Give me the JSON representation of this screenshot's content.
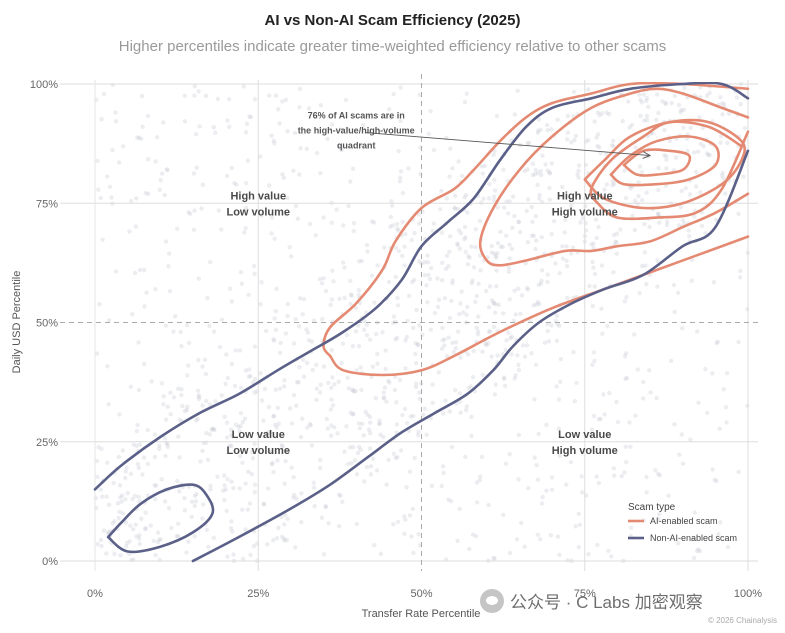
{
  "title": "AI vs Non-AI Scam Efficiency (2025)",
  "subtitle": "Higher percentiles indicate greater time-weighted efficiency relative to other scams",
  "chart_data": {
    "type": "scatter",
    "xlabel": "Transfer Rate Percentile",
    "ylabel": "Daily USD Percentile",
    "xlim": [
      0,
      100
    ],
    "ylim": [
      0,
      100
    ],
    "x_ticks": [
      "0%",
      "25%",
      "50%",
      "75%",
      "100%"
    ],
    "y_ticks": [
      "0%",
      "25%",
      "50%",
      "75%",
      "100%"
    ],
    "grid": true,
    "reference_lines": {
      "x": 50,
      "y": 50,
      "style": "dashed"
    },
    "quadrant_labels": [
      {
        "line1": "High value",
        "line2": "Low volume",
        "x": 25,
        "y": 75
      },
      {
        "line1": "High value",
        "line2": "High volume",
        "x": 75,
        "y": 75
      },
      {
        "line1": "Low value",
        "line2": "Low volume",
        "x": 25,
        "y": 25
      },
      {
        "line1": "Low value",
        "line2": "High volume",
        "x": 75,
        "y": 25
      }
    ],
    "annotation": {
      "lines": [
        "76% of AI scams are in",
        "the high-value/high-volume",
        "quadrant"
      ],
      "text_x": 40,
      "text_y": 94,
      "arrow_to": [
        85,
        85
      ]
    },
    "legend": {
      "title": "Scam type",
      "placement": "bottom-right",
      "items": [
        {
          "label": "AI-enabled scam",
          "color": "#e58a72"
        },
        {
          "label": "Non-AI-enabled scam",
          "color": "#5a6088"
        }
      ]
    },
    "series": [
      {
        "name": "AI-enabled scam",
        "color": "#e58a72",
        "contours": [
          [
            [
              36,
              43
            ],
            [
              38,
              40
            ],
            [
              44,
              39
            ],
            [
              50,
              40
            ],
            [
              55,
              43
            ],
            [
              62,
              48
            ],
            [
              70,
              53
            ],
            [
              78,
              57
            ],
            [
              86,
              61
            ],
            [
              92,
              64
            ],
            [
              100,
              68
            ]
          ],
          [
            [
              100,
              77
            ],
            [
              95,
              73
            ],
            [
              90,
              70
            ],
            [
              85,
              67
            ],
            [
              80,
              66
            ],
            [
              76,
              65
            ],
            [
              72,
              65
            ],
            [
              66,
              63
            ],
            [
              62,
              62
            ],
            [
              60,
              63
            ],
            [
              59,
              67
            ],
            [
              61,
              74
            ],
            [
              65,
              82
            ],
            [
              70,
              89
            ],
            [
              76,
              95
            ],
            [
              82,
              98
            ],
            [
              86,
              99
            ],
            [
              90,
              98
            ],
            [
              96,
              95
            ],
            [
              100,
              93
            ]
          ],
          [
            [
              36,
              43
            ],
            [
              35,
              45
            ],
            [
              36,
              49
            ],
            [
              40,
              54
            ],
            [
              44,
              61
            ],
            [
              46,
              67
            ],
            [
              50,
              74
            ],
            [
              55,
              78
            ],
            [
              58,
              82
            ],
            [
              62,
              88
            ],
            [
              66,
              93
            ],
            [
              70,
              96
            ],
            [
              76,
              98
            ],
            [
              82,
              100
            ],
            [
              90,
              100
            ],
            [
              100,
              99
            ]
          ],
          [
            [
              100,
              90
            ],
            [
              96,
              78
            ],
            [
              92,
              73
            ],
            [
              86,
              72
            ],
            [
              80,
              72
            ],
            [
              77,
              75
            ],
            [
              76,
              78
            ],
            [
              79,
              84
            ],
            [
              84,
              89
            ],
            [
              88,
              92
            ],
            [
              94,
              91
            ],
            [
              99,
              87
            ]
          ],
          [
            [
              75,
              80
            ],
            [
              78,
              84
            ],
            [
              82,
              89
            ],
            [
              88,
              92
            ],
            [
              94,
              92
            ],
            [
              99,
              88
            ],
            [
              99,
              84
            ],
            [
              96,
              79
            ],
            [
              90,
              75
            ],
            [
              84,
              74
            ],
            [
              78,
              76
            ],
            [
              75,
              80
            ]
          ],
          [
            [
              79,
              81
            ],
            [
              82,
              85
            ],
            [
              86,
              88
            ],
            [
              91,
              89
            ],
            [
              95,
              87
            ],
            [
              95,
              83
            ],
            [
              91,
              80
            ],
            [
              86,
              79
            ],
            [
              81,
              79
            ],
            [
              79,
              81
            ]
          ],
          [
            [
              81,
              83
            ],
            [
              84,
              86
            ],
            [
              88,
              86
            ],
            [
              91,
              85
            ],
            [
              90,
              82
            ],
            [
              86,
              81
            ],
            [
              83,
              81
            ],
            [
              81,
              83
            ]
          ]
        ]
      },
      {
        "name": "Non-AI-enabled scam",
        "color": "#5a6088",
        "contours": [
          [
            [
              0,
              15
            ],
            [
              4,
              20
            ],
            [
              10,
              26
            ],
            [
              16,
              31
            ],
            [
              22,
              35
            ],
            [
              28,
              40
            ],
            [
              33,
              44
            ],
            [
              38,
              48
            ],
            [
              43,
              53
            ],
            [
              47,
              59
            ],
            [
              50,
              66
            ],
            [
              54,
              71
            ],
            [
              58,
              76
            ],
            [
              62,
              84
            ],
            [
              66,
              91
            ],
            [
              70,
              95
            ],
            [
              76,
              97
            ],
            [
              82,
              99
            ],
            [
              90,
              100
            ],
            [
              96,
              100
            ],
            [
              100,
              97
            ]
          ],
          [
            [
              15,
              0
            ],
            [
              22,
              5
            ],
            [
              30,
              11
            ],
            [
              36,
              16
            ],
            [
              42,
              22
            ],
            [
              47,
              27
            ],
            [
              52,
              31
            ],
            [
              57,
              35
            ],
            [
              61,
              40
            ],
            [
              64,
              45
            ],
            [
              68,
              50
            ],
            [
              73,
              54
            ],
            [
              78,
              57
            ],
            [
              84,
              60
            ],
            [
              90,
              66
            ],
            [
              95,
              70
            ],
            [
              100,
              86
            ]
          ],
          [
            [
              2,
              5
            ],
            [
              4,
              8
            ],
            [
              7,
              12
            ],
            [
              11,
              15
            ],
            [
              15,
              16
            ],
            [
              17,
              14
            ],
            [
              18,
              10
            ],
            [
              15,
              6
            ],
            [
              10,
              3
            ],
            [
              5,
              2
            ],
            [
              2,
              5
            ]
          ]
        ]
      }
    ]
  },
  "watermark": {
    "text": "公众号 · C Labs 加密观察"
  },
  "copyright": "© 2026 Chainalysis"
}
